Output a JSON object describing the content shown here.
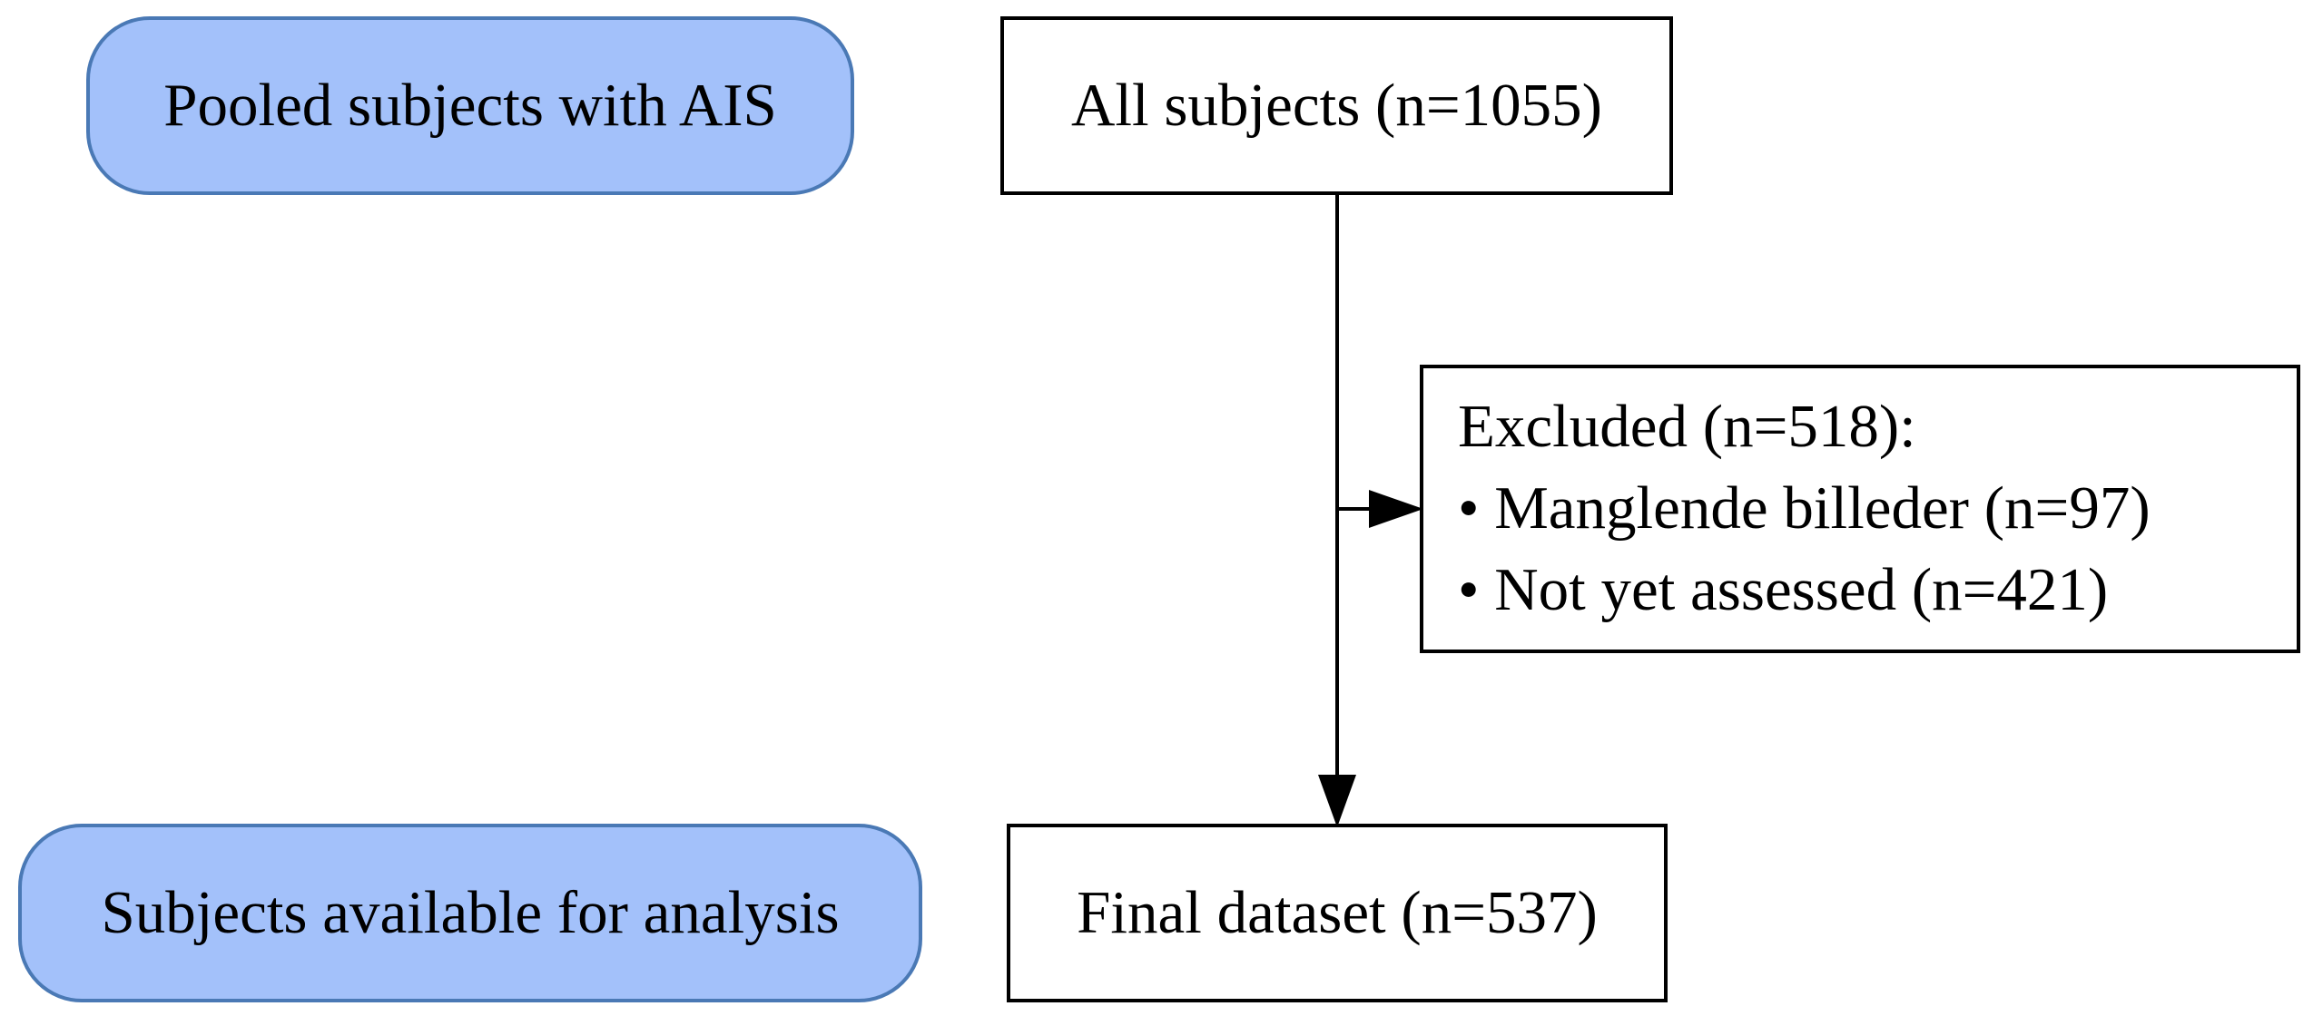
{
  "stages": [
    {
      "label": "Pooled subjects with AIS"
    },
    {
      "label": "Subjects available for analysis"
    }
  ],
  "nodes": {
    "all_subjects": "All subjects (n=1055)",
    "final_dataset": "Final dataset (n=537)",
    "excluded": {
      "title": "Excluded (n=518):",
      "reasons": [
        "• Manglende billeder (n=97)",
        "• Not yet assessed (n=421)"
      ]
    }
  },
  "colors": {
    "stage_fill": "#a3c1fa",
    "stage_stroke": "#4a79b5",
    "box_stroke": "#000000",
    "arrow": "#000000"
  }
}
